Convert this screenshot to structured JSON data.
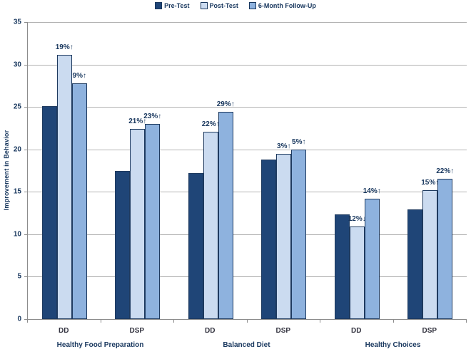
{
  "chart_data": {
    "type": "bar",
    "title": "",
    "xlabel": "",
    "ylabel": "Improvement in Behavior",
    "ylim": [
      0,
      35
    ],
    "ytick_step": 5,
    "grid": "horizontal",
    "legend_position": "top-center",
    "categories": [
      "DD",
      "DSP",
      "DD",
      "DSP",
      "DD",
      "DSP"
    ],
    "group_labels": [
      "Healthy Food Preparation",
      "Balanced Diet",
      "Healthy Choices"
    ],
    "series": [
      {
        "name": "Pre-Test",
        "color": "#1F4577",
        "values": [
          25.1,
          17.5,
          17.2,
          18.8,
          12.3,
          12.9
        ]
      },
      {
        "name": "Post-Test",
        "color": "#CBDBF0",
        "values": [
          31.1,
          22.4,
          22.1,
          19.5,
          10.9,
          15.2
        ],
        "annotations": [
          "19%↑",
          "21%↑",
          "22%↑",
          "3%↑",
          "12%↓",
          "15%↑"
        ]
      },
      {
        "name": "6-Month Follow-Up",
        "color": "#8EB2DE",
        "values": [
          27.8,
          23.0,
          24.4,
          20.0,
          14.2,
          16.5
        ],
        "annotations": [
          "9%↑",
          "23%↑",
          "29%↑",
          "5%↑",
          "14%↑",
          "22%↑"
        ]
      }
    ],
    "colors": {
      "grid": "#B3B3B3",
      "axis": "#8C8C8C",
      "bar_border": "#1E3A5F",
      "text": "#17365D"
    }
  }
}
